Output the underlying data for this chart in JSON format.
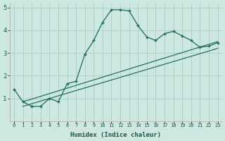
{
  "title": "",
  "xlabel": "Humidex (Indice chaleur)",
  "xlim": [
    -0.5,
    23.5
  ],
  "ylim": [
    0,
    5.2
  ],
  "xticks": [
    0,
    1,
    2,
    3,
    4,
    5,
    6,
    7,
    8,
    9,
    10,
    11,
    12,
    13,
    14,
    15,
    16,
    17,
    18,
    19,
    20,
    21,
    22,
    23
  ],
  "yticks": [
    1,
    2,
    3,
    4,
    5
  ],
  "bg_color": "#cce8e0",
  "line_color": "#1a6b5a",
  "grid_color": "#aacec6",
  "main_x": [
    0,
    1,
    2,
    3,
    4,
    5,
    6,
    7,
    8,
    9,
    10,
    11,
    12,
    13,
    14,
    15,
    16,
    17,
    18,
    19,
    20,
    21,
    22,
    23
  ],
  "main_y": [
    1.4,
    0.85,
    0.65,
    0.65,
    1.0,
    0.85,
    1.65,
    1.75,
    2.95,
    3.55,
    4.35,
    4.9,
    4.9,
    4.85,
    4.2,
    3.7,
    3.55,
    3.85,
    3.95,
    3.75,
    3.55,
    3.25,
    3.3,
    3.45
  ],
  "line2_x": [
    1,
    23
  ],
  "line2_y": [
    0.85,
    3.5
  ],
  "line3_x": [
    1,
    23
  ],
  "line3_y": [
    0.65,
    3.2
  ]
}
